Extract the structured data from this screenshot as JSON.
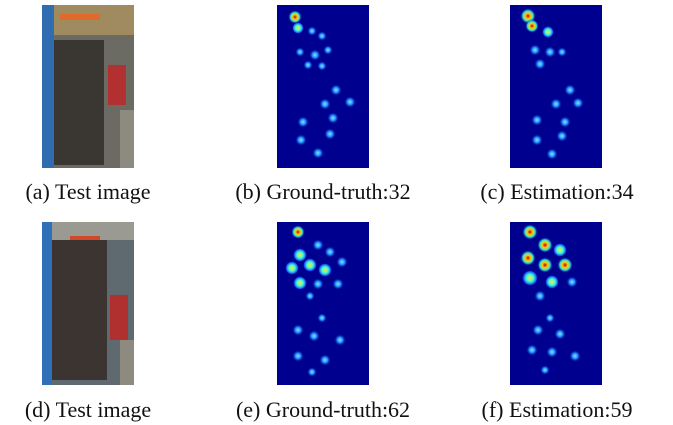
{
  "panels": [
    {
      "caption": "(a) Test image"
    },
    {
      "caption": "(b) Ground-truth:32"
    },
    {
      "caption": "(c) Estimation:34"
    },
    {
      "caption": "(d) Test image"
    },
    {
      "caption": "(e) Ground-truth:62"
    },
    {
      "caption": "(f) Estimation:59"
    }
  ]
}
